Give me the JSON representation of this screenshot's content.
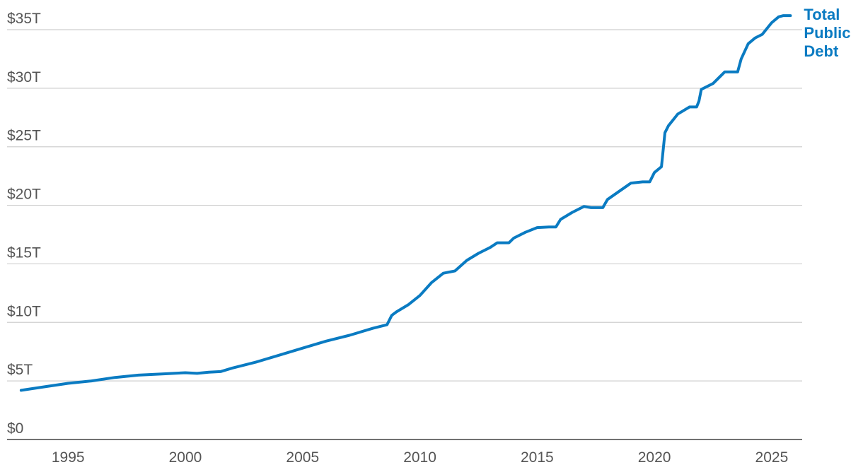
{
  "colors": {
    "series": "#0a7bc2",
    "grid": "#cfcfcf",
    "text": "#555555"
  },
  "chart_data": {
    "type": "line",
    "title": "",
    "xlabel": "",
    "ylabel": "",
    "xlim": [
      1992.4,
      2026.3
    ],
    "ylim": [
      0,
      35
    ],
    "y_ticks": [
      0,
      5,
      10,
      15,
      20,
      25,
      30,
      35
    ],
    "y_tick_labels": [
      "$0",
      "$5T",
      "$10T",
      "$15T",
      "$20T",
      "$25T",
      "$30T",
      "$35T"
    ],
    "x_ticks": [
      1995,
      2000,
      2005,
      2010,
      2015,
      2020,
      2025
    ],
    "x_tick_labels": [
      "1995",
      "2000",
      "2005",
      "2010",
      "2015",
      "2020",
      "2025"
    ],
    "grid": "horizontal",
    "legend": "right end of line",
    "series": [
      {
        "name": "Total Public Debt",
        "label_lines": [
          "Total",
          "Public",
          "Debt"
        ],
        "color": "#0a7bc2",
        "unit": "trillion USD",
        "x": [
          1993.0,
          1994.0,
          1995.0,
          1996.0,
          1997.0,
          1998.0,
          1999.0,
          2000.0,
          2000.5,
          2001.0,
          2001.5,
          2002.0,
          2003.0,
          2004.0,
          2005.0,
          2006.0,
          2007.0,
          2008.0,
          2008.6,
          2008.8,
          2009.0,
          2009.5,
          2010.0,
          2010.5,
          2011.0,
          2011.5,
          2012.0,
          2012.5,
          2013.0,
          2013.3,
          2013.6,
          2013.8,
          2014.0,
          2014.5,
          2015.0,
          2015.5,
          2015.8,
          2016.0,
          2016.5,
          2017.0,
          2017.3,
          2017.5,
          2017.8,
          2018.0,
          2018.5,
          2019.0,
          2019.5,
          2019.8,
          2020.0,
          2020.3,
          2020.45,
          2020.6,
          2021.0,
          2021.5,
          2021.8,
          2021.9,
          2022.0,
          2022.5,
          2023.0,
          2023.4,
          2023.55,
          2023.7,
          2024.0,
          2024.3,
          2024.6,
          2024.8,
          2025.0,
          2025.3,
          2025.5,
          2025.8
        ],
        "values": [
          4.2,
          4.5,
          4.8,
          5.0,
          5.3,
          5.5,
          5.6,
          5.7,
          5.65,
          5.75,
          5.8,
          6.1,
          6.6,
          7.2,
          7.8,
          8.4,
          8.9,
          9.5,
          9.8,
          10.6,
          10.9,
          11.5,
          12.3,
          13.4,
          14.2,
          14.4,
          15.3,
          15.9,
          16.4,
          16.8,
          16.8,
          16.8,
          17.2,
          17.7,
          18.1,
          18.15,
          18.15,
          18.8,
          19.4,
          19.9,
          19.8,
          19.8,
          19.8,
          20.5,
          21.2,
          21.9,
          22.0,
          22.0,
          22.8,
          23.3,
          26.2,
          26.8,
          27.8,
          28.4,
          28.4,
          28.9,
          29.9,
          30.4,
          31.4,
          31.4,
          31.4,
          32.5,
          33.8,
          34.3,
          34.6,
          35.1,
          35.6,
          36.1,
          36.2,
          36.2
        ]
      }
    ]
  }
}
